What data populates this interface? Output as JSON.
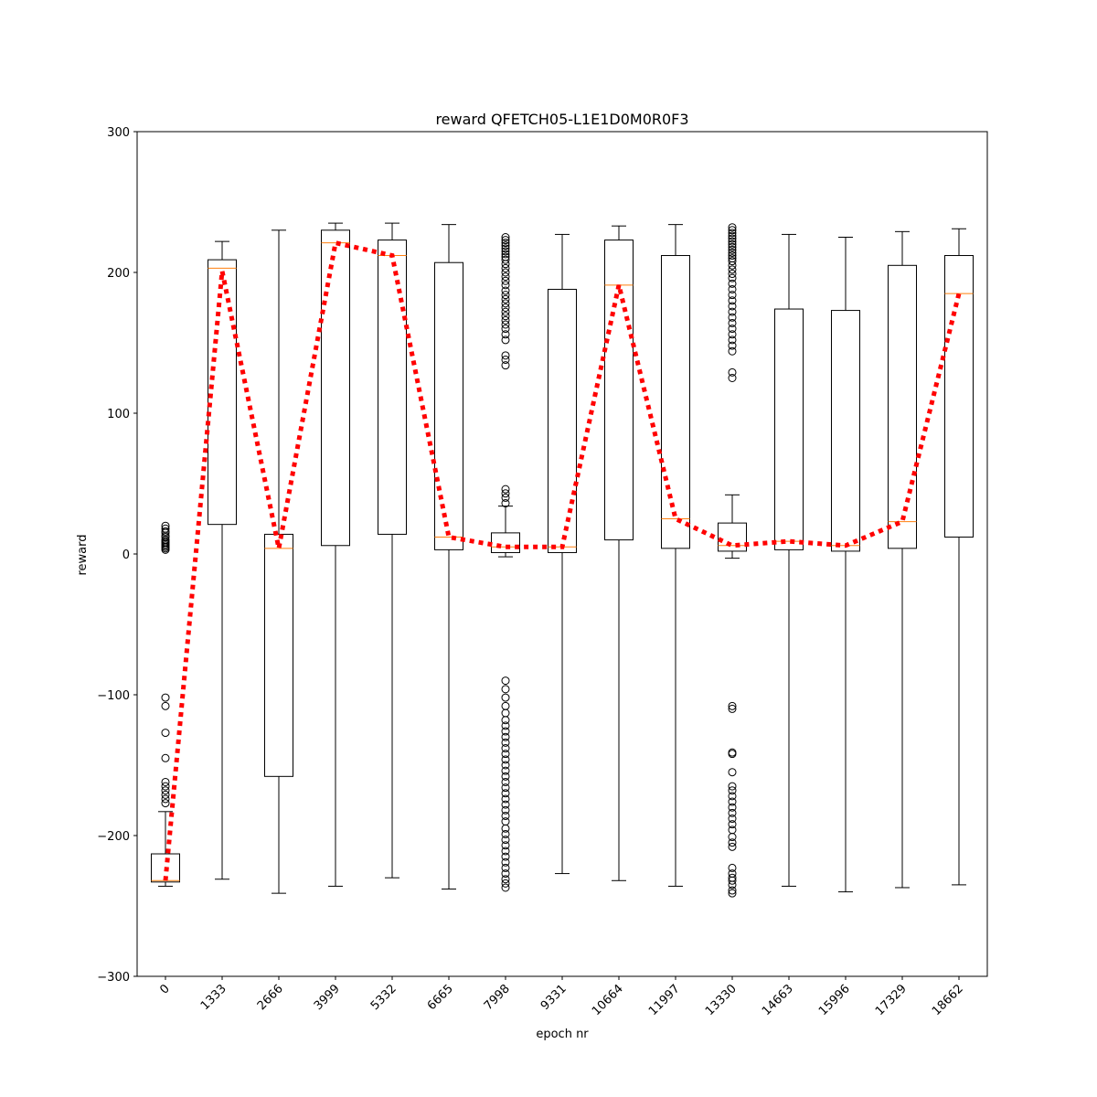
{
  "chart_data": {
    "type": "box",
    "title": "reward QFETCH05-L1E1D0M0R0F3",
    "xlabel": "epoch nr",
    "ylabel": "reward",
    "ylim": [
      -300,
      300
    ],
    "yticks": [
      -300,
      -200,
      -100,
      0,
      100,
      200,
      300
    ],
    "ytick_labels": [
      "−300",
      "−200",
      "−100",
      "0",
      "100",
      "200",
      "300"
    ],
    "categories": [
      "0",
      "1333",
      "2666",
      "3999",
      "5332",
      "6665",
      "7998",
      "9331",
      "10664",
      "11997",
      "13330",
      "14663",
      "15996",
      "17329",
      "18662"
    ],
    "grid": false,
    "colors": {
      "box": "#000000",
      "median": "#ff7f0e",
      "mean_line": "#ff0000",
      "flier": "#000000"
    },
    "boxes": [
      {
        "q1": -233,
        "median": -232,
        "q3": -213,
        "whisker_low": -236,
        "whisker_high": -183,
        "fliers": [
          20,
          18,
          16,
          15,
          13,
          12,
          10,
          9,
          8,
          7,
          6,
          5,
          4,
          3,
          -102,
          -108,
          -127,
          -145,
          -162,
          -165,
          -168,
          -171,
          -174,
          -177
        ]
      },
      {
        "q1": 21,
        "median": 203,
        "q3": 209,
        "whisker_low": -231,
        "whisker_high": 222,
        "fliers": []
      },
      {
        "q1": -158,
        "median": 4,
        "q3": 14,
        "whisker_low": -241,
        "whisker_high": 230,
        "fliers": []
      },
      {
        "q1": 6,
        "median": 221,
        "q3": 230,
        "whisker_low": -236,
        "whisker_high": 235,
        "fliers": []
      },
      {
        "q1": 14,
        "median": 212,
        "q3": 223,
        "whisker_low": -230,
        "whisker_high": 235,
        "fliers": []
      },
      {
        "q1": 3,
        "median": 12,
        "q3": 207,
        "whisker_low": -238,
        "whisker_high": 234,
        "fliers": []
      },
      {
        "q1": 1,
        "median": 5,
        "q3": 15,
        "whisker_low": -2,
        "whisker_high": 34,
        "fliers": [
          225,
          223,
          221,
          219,
          217,
          215,
          213,
          211,
          209,
          206,
          203,
          200,
          197,
          194,
          191,
          187,
          184,
          181,
          178,
          175,
          172,
          169,
          166,
          163,
          160,
          156,
          152,
          141,
          138,
          134,
          46,
          43,
          40,
          36,
          -90,
          -96,
          -102,
          -108,
          -113,
          -118,
          -122,
          -126,
          -130,
          -134,
          -138,
          -142,
          -146,
          -150,
          -154,
          -158,
          -162,
          -166,
          -170,
          -174,
          -178,
          -182,
          -186,
          -190,
          -195,
          -199,
          -203,
          -207,
          -211,
          -215,
          -219,
          -223,
          -227,
          -231,
          -234,
          -237
        ]
      },
      {
        "q1": 1,
        "median": 5,
        "q3": 188,
        "whisker_low": -227,
        "whisker_high": 227,
        "fliers": []
      },
      {
        "q1": 10,
        "median": 191,
        "q3": 223,
        "whisker_low": -232,
        "whisker_high": 233,
        "fliers": []
      },
      {
        "q1": 4,
        "median": 25,
        "q3": 212,
        "whisker_low": -236,
        "whisker_high": 234,
        "fliers": []
      },
      {
        "q1": 2,
        "median": 6,
        "q3": 22,
        "whisker_low": -3,
        "whisker_high": 42,
        "fliers": [
          232,
          230,
          228,
          226,
          224,
          222,
          220,
          218,
          216,
          214,
          212,
          210,
          208,
          205,
          202,
          199,
          196,
          192,
          188,
          184,
          180,
          176,
          172,
          168,
          164,
          160,
          156,
          152,
          148,
          144,
          129,
          125,
          -108,
          -110,
          -141,
          -142,
          -155,
          -165,
          -168,
          -172,
          -176,
          -180,
          -184,
          -188,
          -192,
          -196,
          -201,
          -205,
          -208,
          -223,
          -227,
          -230,
          -232,
          -235,
          -239,
          -241
        ]
      },
      {
        "q1": 3,
        "median": 9,
        "q3": 174,
        "whisker_low": -236,
        "whisker_high": 227,
        "fliers": []
      },
      {
        "q1": 2,
        "median": 6,
        "q3": 173,
        "whisker_low": -240,
        "whisker_high": 225,
        "fliers": []
      },
      {
        "q1": 4,
        "median": 23,
        "q3": 205,
        "whisker_low": -237,
        "whisker_high": 229,
        "fliers": []
      },
      {
        "q1": 12,
        "median": 185,
        "q3": 212,
        "whisker_low": -235,
        "whisker_high": 231,
        "fliers": []
      }
    ],
    "mean_line": {
      "style": "dotted",
      "values": [
        -232,
        201,
        4,
        221,
        212,
        12,
        5,
        5,
        191,
        25,
        6,
        9,
        6,
        23,
        185
      ]
    }
  }
}
